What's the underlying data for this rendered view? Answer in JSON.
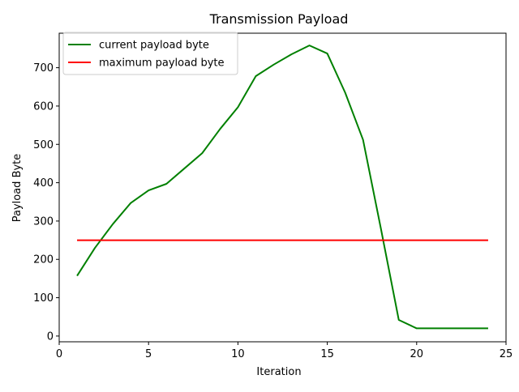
{
  "chart_data": {
    "type": "line",
    "title": "Transmission Payload",
    "xlabel": "Iteration",
    "ylabel": "Payload Byte",
    "xlim": [
      0,
      25
    ],
    "ylim": [
      -15,
      790
    ],
    "xticks": [
      0,
      5,
      10,
      15,
      20,
      25
    ],
    "yticks": [
      0,
      100,
      200,
      300,
      400,
      500,
      600,
      700
    ],
    "grid": false,
    "legend_position": "top-left",
    "series": [
      {
        "name": "current payload byte",
        "color": "#008000",
        "x": [
          1,
          2,
          3,
          4,
          5,
          6,
          7,
          8,
          9,
          10,
          11,
          12,
          13,
          14,
          15,
          16,
          17,
          18,
          19,
          20,
          21,
          22,
          23,
          24
        ],
        "y": [
          157,
          230,
          292,
          347,
          380,
          397,
          437,
          477,
          540,
          597,
          678,
          708,
          735,
          758,
          737,
          635,
          512,
          280,
          42,
          20,
          20,
          20,
          20,
          20
        ]
      },
      {
        "name": "maximum payload byte",
        "color": "#ff0000",
        "x": [
          1,
          24
        ],
        "y": [
          250,
          250
        ]
      }
    ]
  }
}
